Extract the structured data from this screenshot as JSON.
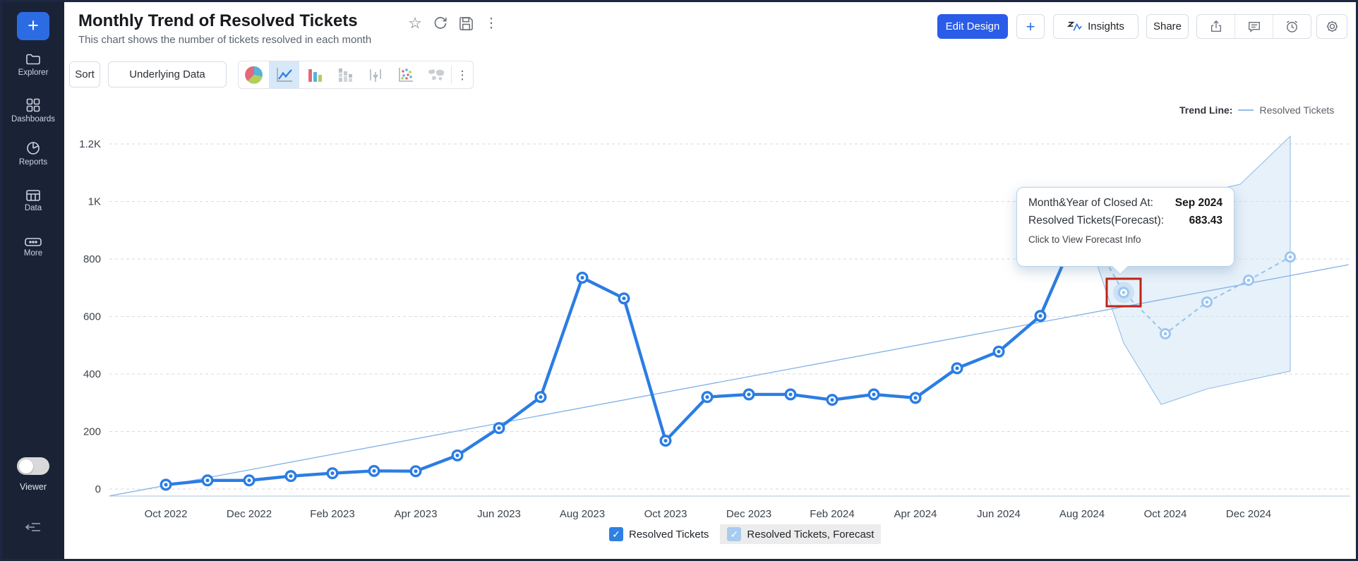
{
  "sidebar": {
    "plus_label": "+",
    "items": [
      {
        "label": "Explorer",
        "icon": "folder-icon"
      },
      {
        "label": "Dashboards",
        "icon": "dashboards-grid-icon"
      },
      {
        "label": "Reports",
        "icon": "pie-report-icon"
      },
      {
        "label": "Data",
        "icon": "table-icon"
      },
      {
        "label": "More",
        "icon": "ellipsis-icon"
      }
    ],
    "viewer_label": "Viewer",
    "viewer_toggle_state": "off"
  },
  "header": {
    "title": "Monthly Trend of Resolved Tickets",
    "subtitle": "This chart shows the number of tickets resolved in each month",
    "title_icons": [
      "star-icon",
      "refresh-icon",
      "save-icon",
      "kebab-menu-icon"
    ],
    "star_glyph": "☆",
    "kebab_glyph": "⋮",
    "actions": {
      "edit_design": "Edit Design",
      "add": "+",
      "insights": "Insights",
      "share": "Share",
      "icon_buttons": [
        "export-icon",
        "comment-icon",
        "alarm-icon",
        "settings-gear-icon"
      ]
    },
    "accent_color": "#2a5ce8"
  },
  "toolbar": {
    "sort": "Sort",
    "underlying_data": "Underlying Data",
    "chart_types": [
      "pie-chart-icon",
      "line-chart-icon",
      "bar-chart-icon",
      "stacked-bar-icon",
      "hilo-bar-icon",
      "scatter-icon",
      "map-icon",
      "more-chart-types-kebab"
    ],
    "selected_chart_type": "line-chart-icon",
    "kebab_glyph": "⋮"
  },
  "trend_legend": {
    "label": "Trend Line:",
    "series": "Resolved Tickets",
    "line_color": "#8fc0ea"
  },
  "tooltip": {
    "row1_label": "Month&Year of Closed At:",
    "row1_value": "Sep 2024",
    "row2_label": "Resolved Tickets(Forecast):",
    "row2_value": "683.43",
    "footer": "Click to View Forecast Info"
  },
  "legend": {
    "check_glyph": "✓",
    "items": [
      {
        "label": "Resolved Tickets",
        "color": "#2f80e2",
        "checked": true
      },
      {
        "label": "Resolved Tickets, Forecast",
        "color": "#a8ccf0",
        "checked": true
      }
    ]
  },
  "chart_data": {
    "type": "line",
    "title": "Monthly Trend of Resolved Tickets",
    "xlabel": "Month&Year of Closed At",
    "ylabel": "Resolved Tickets",
    "ylim": [
      0,
      1200
    ],
    "grid": "dashed-horizontal",
    "legend_position": "bottom",
    "y_tick_values": [
      0,
      200,
      400,
      600,
      800,
      1000,
      1200
    ],
    "y_tick_labels": [
      "0",
      "200",
      "400",
      "600",
      "800",
      "1K",
      "1.2K"
    ],
    "x_tick_labels": [
      "Oct 2022",
      "Dec 2022",
      "Feb 2023",
      "Apr 2023",
      "Jun 2023",
      "Aug 2023",
      "Oct 2023",
      "Dec 2023",
      "Feb 2024",
      "Apr 2024",
      "Jun 2024",
      "Aug 2024",
      "Oct 2024",
      "Dec 2024"
    ],
    "series": [
      {
        "name": "Resolved Tickets",
        "kind": "actual",
        "color": "#2b7de3",
        "x_start": "Oct 2022",
        "values": [
          15,
          30,
          30,
          45,
          55,
          63,
          62,
          117,
          212,
          320,
          735,
          663,
          168,
          320,
          329,
          329,
          310,
          329,
          317,
          420,
          478,
          602,
          935
        ]
      },
      {
        "name": "Resolved Tickets, Forecast",
        "kind": "forecast",
        "color": "#9cc6ee",
        "points": [
          [
            22,
            935
          ],
          [
            23,
            683.43
          ],
          [
            24,
            540
          ],
          [
            25,
            650
          ],
          [
            26,
            726
          ],
          [
            27,
            807
          ]
        ],
        "marker_from": 1,
        "highlight_point": 1,
        "highlight": {
          "month": "Sep 2024",
          "value": 683.43,
          "box_color": "#bf2418"
        }
      }
    ],
    "trend_line": {
      "name": "Resolved Tickets",
      "color": "#7fb2e6",
      "points": [
        [
          -1.35,
          -24
        ],
        [
          28.4,
          780
        ]
      ]
    },
    "forecast_band": {
      "fill": "#cfe3f6",
      "stroke": "#8ab8e6",
      "points": [
        [
          22,
          935
        ],
        [
          25.8,
          1060
        ],
        [
          27,
          1227
        ],
        [
          27,
          410
        ],
        [
          25,
          348
        ],
        [
          23.9,
          294
        ],
        [
          23,
          508
        ]
      ]
    }
  }
}
